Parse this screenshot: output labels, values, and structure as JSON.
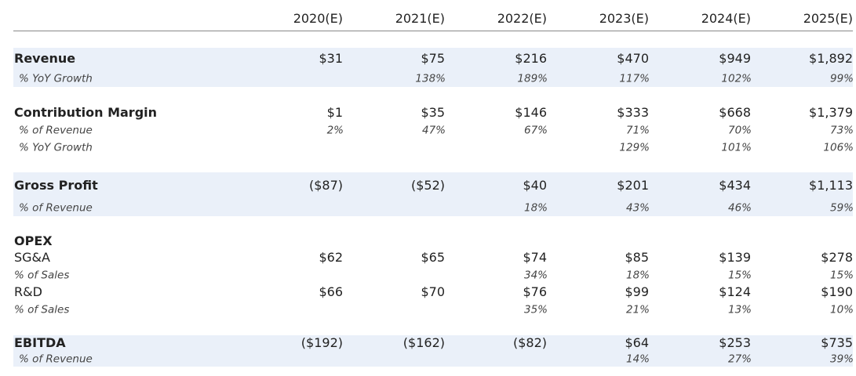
{
  "table": {
    "columns": [
      "2020(E)",
      "2021(E)",
      "2022(E)",
      "2023(E)",
      "2024(E)",
      "2025(E)"
    ],
    "rows": [
      {
        "label": "Revenue",
        "cells": [
          "$31",
          "$75",
          "$216",
          "$470",
          "$949",
          "$1,892"
        ]
      },
      {
        "label": "% YoY Growth",
        "cells": [
          null,
          "138%",
          "189%",
          "117%",
          "102%",
          "99%"
        ]
      },
      {
        "label": "Contribution Margin",
        "cells": [
          "$1",
          "$35",
          "$146",
          "$333",
          "$668",
          "$1,379"
        ]
      },
      {
        "label": "% of Revenue",
        "cells": [
          "2%",
          "47%",
          "67%",
          "71%",
          "70%",
          "73%"
        ]
      },
      {
        "label": "% YoY Growth",
        "cells": [
          null,
          null,
          null,
          "129%",
          "101%",
          "106%"
        ]
      },
      {
        "label": "Gross Profit",
        "cells": [
          "($87)",
          "($52)",
          "$40",
          "$201",
          "$434",
          "$1,113"
        ]
      },
      {
        "label": "% of Revenue",
        "cells": [
          null,
          null,
          "18%",
          "43%",
          "46%",
          "59%"
        ]
      },
      {
        "label": "OPEX"
      },
      {
        "label": "SG&A",
        "cells": [
          "$62",
          "$65",
          "$74",
          "$85",
          "$139",
          "$278"
        ]
      },
      {
        "label": "% of Sales",
        "cells": [
          null,
          null,
          "34%",
          "18%",
          "15%",
          "15%"
        ]
      },
      {
        "label": "R&D",
        "cells": [
          "$66",
          "$70",
          "$76",
          "$99",
          "$124",
          "$190"
        ]
      },
      {
        "label": "% of Sales",
        "cells": [
          null,
          null,
          "35%",
          "21%",
          "13%",
          "10%"
        ]
      },
      {
        "label": "EBITDA",
        "cells": [
          "($192)",
          "($162)",
          "($82)",
          "$64",
          "$253",
          "$735"
        ]
      },
      {
        "label": "% of Revenue",
        "cells": [
          null,
          null,
          null,
          "14%",
          "27%",
          "39%"
        ]
      }
    ]
  }
}
